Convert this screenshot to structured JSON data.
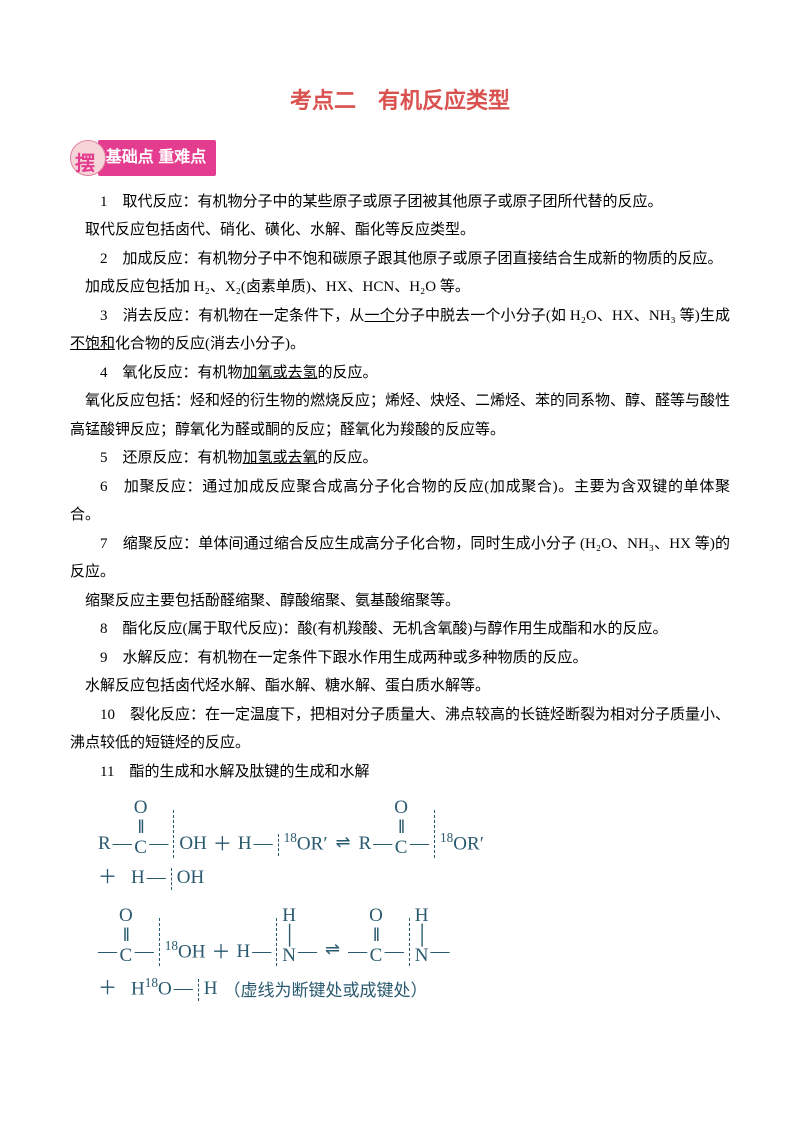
{
  "title": "考点二　有机反应类型",
  "badge": {
    "char": "摆",
    "inner": "点",
    "text": "基础点 重难点"
  },
  "colors": {
    "title": "#d9524f",
    "badge_bg": "#e43d8f",
    "badge_circle": "#f5d5d8",
    "chem": "#2a5a6f",
    "text": "#000000"
  },
  "items": [
    {
      "n": "1",
      "head": "取代反应：",
      "body": "有机物分子中的某些原子或原子团被其他原子或原子团所代替的反应。"
    },
    {
      "sub": "取代反应包括卤代、硝化、磺化、水解、酯化等反应类型。"
    },
    {
      "n": "2",
      "head": "加成反应：",
      "body": "有机物分子中不饱和碳原子跟其他原子或原子团直接结合生成新的物质的反应。"
    },
    {
      "sub": "加成反应包括加 H₂、X₂(卤素单质)、HX、HCN、H₂O 等。"
    },
    {
      "n": "3",
      "head": "消去反应：",
      "body_html": "有机物在一定条件下，从<span class='u'>一个</span>分子中脱去一个小分子(如 H₂O、HX、NH₃ 等)生成<span class='u'>不饱和</span>化合物的反应(消去小分子)。"
    },
    {
      "n": "4",
      "head": "氧化反应：",
      "body_html": "有机物<span class='u'>加氧或去氢</span>的反应。"
    },
    {
      "sub": "氧化反应包括：烃和烃的衍生物的燃烧反应；烯烃、炔烃、二烯烃、苯的同系物、醇、醛等与酸性高锰酸钾反应；醇氧化为醛或酮的反应；醛氧化为羧酸的反应等。"
    },
    {
      "n": "5",
      "head": "还原反应：",
      "body_html": "有机物<span class='u'>加氢或去氧</span>的反应。"
    },
    {
      "n": "6",
      "head": "加聚反应：",
      "body": "通过加成反应聚合成高分子化合物的反应(加成聚合)。主要为含双键的单体聚合。"
    },
    {
      "n": "7",
      "head": "缩聚反应：",
      "body": "单体间通过缩合反应生成高分子化合物，同时生成小分子 (H₂O、NH₃、HX 等)的反应。"
    },
    {
      "sub": "缩聚反应主要包括酚醛缩聚、醇酸缩聚、氨基酸缩聚等。"
    },
    {
      "n": "8",
      "head": "酯化反应(属于取代反应)：",
      "body": "酸(有机羧酸、无机含氧酸)与醇作用生成酯和水的反应。"
    },
    {
      "n": "9",
      "head": "水解反应：",
      "body": "有机物在一定条件下跟水作用生成两种或多种物质的反应。"
    },
    {
      "sub": "水解反应包括卤代烃水解、酯水解、糖水解、蛋白质水解等。"
    },
    {
      "n": "10",
      "head": "裂化反应：",
      "body": "在一定温度下，把相对分子质量大、沸点较高的长链烃断裂为相对分子质量小、沸点较低的短链烃的反应。"
    },
    {
      "n": "11",
      "head": "酯的生成和水解及肽键的生成和水解",
      "body": ""
    }
  ],
  "diagram1_note": "",
  "diagram2_note": "（虚线为断键处或成键处）",
  "chem": {
    "R": "R",
    "C": "C",
    "O": "O",
    "H": "H",
    "OH": "OH",
    "OR": "OR′",
    "N": "N",
    "iso": "18",
    "plus": "＋",
    "dash": "—"
  }
}
